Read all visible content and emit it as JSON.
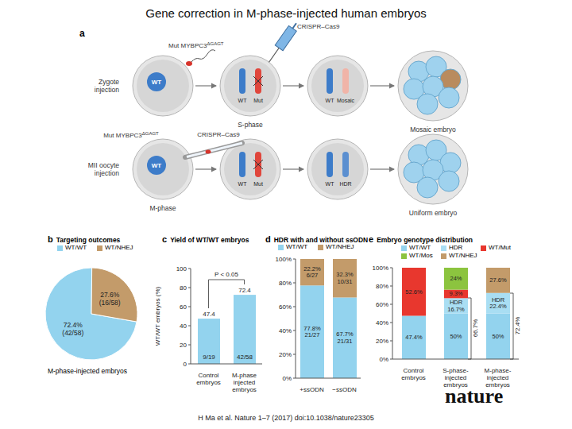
{
  "title": "Gene correction in M-phase-injected human embryos",
  "diagram": {
    "panel": "a",
    "rows": [
      {
        "label": "Zygote injection",
        "mutation": {
          "text": "Mut MYBPC3",
          "superscript": "ΔGAGT",
          "color": "#d7342b"
        },
        "reagent": "CRISPR–Cas9",
        "cells": [
          [
            {
              "text": "WT",
              "color": "#3d7cc9"
            }
          ],
          [
            {
              "text": "WT",
              "color": "#3d7cc9"
            },
            {
              "text": "Mut",
              "color": "#e0463c"
            }
          ],
          [
            {
              "text": "WT",
              "color": "#3d7cc9"
            },
            {
              "text": "Mosaic",
              "color": "#f0b4a8"
            }
          ]
        ],
        "phase": "S-phase",
        "outcome": {
          "text": "Mosaic embryo",
          "colors": [
            "#9fd2ee",
            "#9fd2ee",
            "#b98b5e",
            "#9fd2ee",
            "#9fd2ee",
            "#9fd2ee",
            "#9fd2ee"
          ]
        }
      },
      {
        "label": "MII oocyte injection",
        "mutation": {
          "text": "Mut MYBPC3",
          "superscript": "ΔGAGT",
          "color": "#d7342b"
        },
        "reagent": "CRISPR–Cas9",
        "cells": [
          [
            {
              "text": "WT",
              "color": "#3d7cc9"
            }
          ],
          [
            {
              "text": "WT",
              "color": "#3d7cc9"
            },
            {
              "text": "Mut",
              "color": "#e0463c"
            }
          ],
          [
            {
              "text": "WT",
              "color": "#3d7cc9"
            },
            {
              "text": "HDR",
              "color": "#5b8fd0"
            }
          ]
        ],
        "phase": "M-phase",
        "outcome": {
          "text": "Uniform embryo",
          "colors": [
            "#9fd2ee",
            "#9fd2ee",
            "#9fd2ee",
            "#9fd2ee",
            "#9fd2ee",
            "#9fd2ee",
            "#9fd2ee"
          ]
        }
      }
    ]
  },
  "chart_data": [
    {
      "panel": "b",
      "type": "pie",
      "title": "Targeting outcomes",
      "categories": [
        "WT/WT",
        "WT/NHEJ"
      ],
      "values": [
        72.4,
        27.6
      ],
      "value_labels": [
        "72.4% (42/58)",
        "27.6% (16/58)"
      ],
      "colors": [
        "#93d3ee",
        "#c39b6a"
      ],
      "caption": "M-phase-injected embryos",
      "legend": "top",
      "data_labels": true
    },
    {
      "panel": "c",
      "type": "bar",
      "title": "Yield of WT/WT embryos",
      "categories": [
        "Control embryos",
        "M-phase injected embryos"
      ],
      "values": [
        47.4,
        72.4
      ],
      "fractions": [
        "9/19",
        "42/58"
      ],
      "color": "#93d3ee",
      "ylabel": "WT/WT embryos (%)",
      "ylim": [
        0,
        100
      ],
      "yticks": [
        0,
        20,
        40,
        60,
        80,
        100
      ],
      "data_labels": true,
      "annotations": [
        {
          "text": "P < 0.05"
        }
      ]
    },
    {
      "panel": "d",
      "type": "bar",
      "stacked": true,
      "title": "HDR with and without ssODN",
      "categories": [
        "+ssODN",
        "−ssODN"
      ],
      "series": [
        {
          "name": "WT/WT",
          "color": "#93d3ee",
          "values": [
            77.8,
            67.7
          ],
          "value_labels": [
            "77.8% 21/27",
            "67.7% 21/31"
          ]
        },
        {
          "name": "WT/NHEJ",
          "color": "#c39b6a",
          "values": [
            22.2,
            32.3
          ],
          "value_labels": [
            "22.2% 6/27",
            "32.3% 10/31"
          ]
        }
      ],
      "ylim": [
        0,
        100
      ],
      "yticks": [
        {
          "value": 0,
          "label": "0%"
        },
        {
          "value": 20,
          "label": "20%"
        },
        {
          "value": 40,
          "label": "40%"
        },
        {
          "value": 60,
          "label": "60%"
        },
        {
          "value": 80,
          "label": "80%"
        },
        {
          "value": 100,
          "label": "100%"
        }
      ],
      "legend": "top",
      "data_labels": true
    },
    {
      "panel": "e",
      "type": "bar",
      "stacked": true,
      "title": "Embryo genotype distribution",
      "categories": [
        "Control embryos",
        "S-phase-injected embryos",
        "M-phase-injected embryos"
      ],
      "series": [
        {
          "name": "WT/WT",
          "color": "#93d3ee",
          "values": [
            47.4,
            50,
            50
          ],
          "value_labels": [
            "47.4%",
            "50%",
            "50%"
          ]
        },
        {
          "name": "HDR",
          "color": "#a9def3",
          "values": [
            null,
            16.7,
            22.4
          ],
          "value_labels": [
            null,
            "HDR 16.7%",
            "HDR 22.4%"
          ]
        },
        {
          "name": "WT/Mut",
          "color": "#e8372e",
          "values": [
            52.6,
            9.3,
            null
          ],
          "value_labels": [
            "52.6%",
            "9.3%",
            null
          ]
        },
        {
          "name": "WT/Mos",
          "color": "#8cc43f",
          "values": [
            null,
            24,
            null
          ],
          "value_labels": [
            null,
            "24%",
            null
          ]
        },
        {
          "name": "WT/NHEJ",
          "color": "#c39b6a",
          "values": [
            null,
            null,
            27.6
          ],
          "value_labels": [
            null,
            null,
            "27.6%"
          ]
        }
      ],
      "ylim": [
        0,
        100
      ],
      "yticks": [
        {
          "value": 0,
          "label": "0%"
        },
        {
          "value": 20,
          "label": "20%"
        },
        {
          "value": 40,
          "label": "40%"
        },
        {
          "value": 60,
          "label": "60%"
        },
        {
          "value": 80,
          "label": "80%"
        },
        {
          "value": 100,
          "label": "100%"
        }
      ],
      "legend": "top",
      "data_labels": true,
      "annotations": [
        {
          "text": "66.7%"
        },
        {
          "text": "72.4%"
        }
      ]
    }
  ],
  "footer": {
    "citation": "H Ma et al. Nature 1–7 (2017) doi:10.1038/nature23305",
    "logo": "nature"
  }
}
